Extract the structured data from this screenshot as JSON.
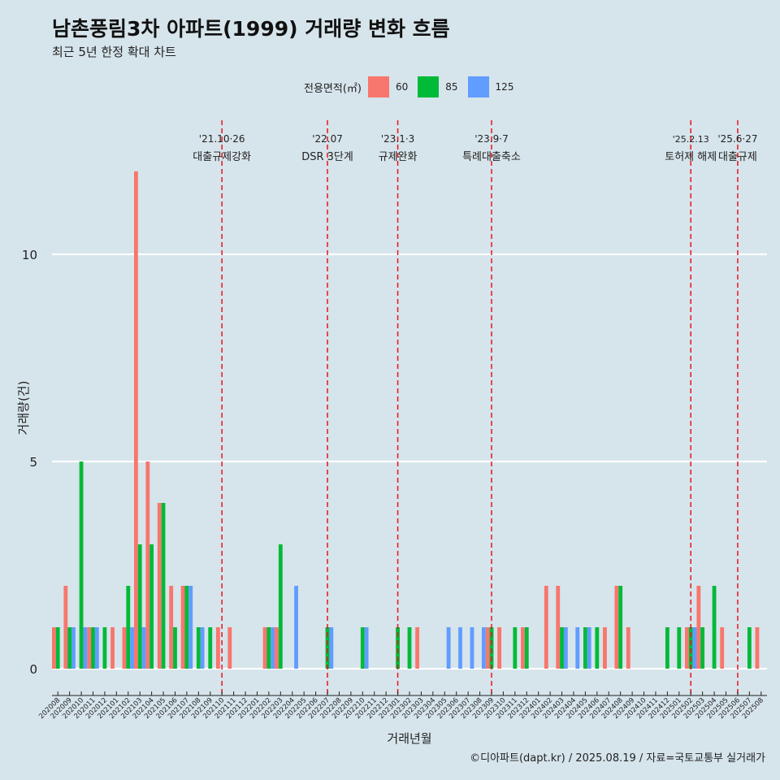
{
  "title": "남촌풍림3차 아파트(1999) 거래량 변화 흐름",
  "subtitle": "최근 5년 한정 확대 차트",
  "legend": {
    "title": "전용면적(㎡)",
    "items": [
      {
        "label": "60",
        "color": "#f8766d"
      },
      {
        "label": "85",
        "color": "#00ba38"
      },
      {
        "label": "125",
        "color": "#619cff"
      }
    ]
  },
  "caption": "©디아파트(dapt.kr) / 2025.08.19 / 자료=국토교통부 실거래가",
  "chart_data": {
    "type": "bar",
    "xlabel": "거래년월",
    "ylabel": "거래량(건)",
    "ylim": [
      0,
      12
    ],
    "yticks": [
      0,
      5,
      10
    ],
    "grid": "horizontal",
    "categories": [
      "202008",
      "202009",
      "202010",
      "202011",
      "202012",
      "202101",
      "202102",
      "202103",
      "202104",
      "202105",
      "202106",
      "202107",
      "202108",
      "202109",
      "202110",
      "202111",
      "202112",
      "202201",
      "202202",
      "202203",
      "202204",
      "202205",
      "202206",
      "202207",
      "202208",
      "202209",
      "202210",
      "202211",
      "202212",
      "202301",
      "202302",
      "202303",
      "202304",
      "202305",
      "202306",
      "202307",
      "202308",
      "202309",
      "202310",
      "202311",
      "202312",
      "202401",
      "202402",
      "202403",
      "202404",
      "202405",
      "202406",
      "202407",
      "202408",
      "202409",
      "202410",
      "202411",
      "202412",
      "202501",
      "202502",
      "202503",
      "202504",
      "202505",
      "202506",
      "202507",
      "202508"
    ],
    "series": [
      {
        "name": "60",
        "values": [
          1,
          2,
          0,
          1,
          0,
          1,
          1,
          12,
          5,
          4,
          2,
          2,
          0,
          0,
          1,
          1,
          0,
          0,
          1,
          1,
          0,
          0,
          0,
          0,
          0,
          0,
          0,
          0,
          0,
          0,
          0,
          1,
          0,
          0,
          0,
          0,
          0,
          1,
          1,
          0,
          1,
          0,
          2,
          2,
          0,
          0,
          0,
          1,
          2,
          1,
          0,
          0,
          0,
          0,
          1,
          2,
          0,
          1,
          0,
          0,
          1
        ]
      },
      {
        "name": "85",
        "values": [
          1,
          1,
          5,
          1,
          1,
          0,
          2,
          3,
          3,
          4,
          1,
          2,
          1,
          1,
          0,
          0,
          0,
          0,
          1,
          3,
          0,
          0,
          0,
          1,
          0,
          0,
          1,
          0,
          0,
          1,
          1,
          0,
          0,
          0,
          0,
          0,
          0,
          1,
          0,
          1,
          1,
          0,
          0,
          1,
          0,
          1,
          1,
          0,
          2,
          0,
          0,
          0,
          1,
          1,
          1,
          1,
          2,
          0,
          0,
          1,
          0
        ]
      },
      {
        "name": "125",
        "values": [
          0,
          1,
          1,
          1,
          0,
          0,
          1,
          1,
          0,
          0,
          0,
          2,
          1,
          0,
          0,
          0,
          0,
          0,
          1,
          0,
          2,
          0,
          0,
          1,
          0,
          0,
          1,
          0,
          0,
          0,
          0,
          0,
          0,
          1,
          1,
          1,
          1,
          0,
          0,
          0,
          0,
          0,
          0,
          1,
          1,
          1,
          0,
          0,
          0,
          0,
          0,
          0,
          0,
          0,
          1,
          0,
          0,
          0,
          0,
          0,
          0
        ]
      }
    ],
    "events": [
      {
        "at": "202110",
        "date": "'21.10·26",
        "label": "대출규제강화"
      },
      {
        "at": "202207",
        "date": "'22.07",
        "label": "DSR 3단계"
      },
      {
        "at": "202301",
        "date": "'23.1·3",
        "label": "규제완화"
      },
      {
        "at": "202309",
        "date": "'23.9·7",
        "label": "특례대출축소"
      },
      {
        "at": "202502",
        "date": "'25.2.13",
        "label": "토허제 해제"
      },
      {
        "at": "202506",
        "date": "'25.6·27",
        "label": "대출규제"
      }
    ]
  }
}
